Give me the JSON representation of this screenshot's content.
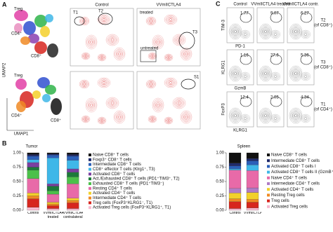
{
  "panel_a": {
    "label": "A",
    "columns": [
      "Control",
      "VVmIICTLA4"
    ],
    "axis_x": "UMAP1",
    "axis_y": "UMAP2",
    "umap_top": [
      "Treg",
      "CD4⁺",
      "CD8⁺"
    ],
    "umap_bottom": [
      "Treg",
      "CD4⁺",
      "CD8⁺"
    ],
    "gates": [
      "T1",
      "T2",
      "treated",
      "T3",
      "untreated",
      "S1"
    ]
  },
  "panel_c": {
    "label": "C",
    "columns": [
      "Control",
      "VVmIICTLA4 treated",
      "VVmIICTLA4 contr."
    ],
    "rows": [
      {
        "y_axis": "TIM-3",
        "x_axis": "PD-1",
        "gate": "T2",
        "gate_of": "(of CD8⁺)",
        "values": [
          "1.77",
          "9.07",
          "6.27"
        ]
      },
      {
        "y_axis": "KLRG1",
        "x_axis": "GzmB",
        "gate": "T3",
        "gate_of": "(of CD8⁺)",
        "values": [
          "1.16",
          "27.6",
          "5.36"
        ]
      },
      {
        "y_axis": "FoxP3",
        "x_axis": "KLRG1",
        "gate": "T1",
        "gate_of": "(of CD4⁺)",
        "values": [
          "12.4",
          "2.05",
          "4.34"
        ]
      }
    ]
  },
  "panel_b": {
    "label": "B"
  },
  "chart_data": [
    {
      "type": "bar",
      "stacked": true,
      "title": "Tumor",
      "categories": [
        "Control",
        "VVmIICTLA4 treated",
        "VVmIICTLA4 contralateral"
      ],
      "ylim": [
        0,
        1
      ],
      "yticks": [
        {
          "value": 0,
          "label": "0.00"
        },
        {
          "value": 0.25,
          "label": "0.25"
        },
        {
          "value": 0.5,
          "label": "0.50"
        },
        {
          "value": 0.75,
          "label": "0.75"
        },
        {
          "value": 1,
          "label": "1.00"
        }
      ],
      "series": [
        {
          "name": "Naive CD8⁺ T cells",
          "color": "#111111",
          "values": [
            0.03,
            0.02,
            0.03
          ]
        },
        {
          "name": "Foxp3⁺ CD8⁺ T cells",
          "color": "#1f2a6b",
          "values": [
            0.03,
            0.02,
            0.03
          ]
        },
        {
          "name": "Intermediate CD8⁺ T cells",
          "color": "#2b5fb8",
          "values": [
            0.06,
            0.05,
            0.07
          ]
        },
        {
          "name": "CD8⁺ effector T cells (Klrg1⁺, T3)",
          "color": "#3fb7e8",
          "values": [
            0.05,
            0.45,
            0.15
          ]
        },
        {
          "name": "Activated CD8⁺ T cells",
          "color": "#7b3fa0",
          "values": [
            0.08,
            0.04,
            0.06
          ]
        },
        {
          "name": "Act./Exhausted CD8⁺ T cells (PD1⁺TIM3⁺, T2)",
          "color": "#1d7a3a",
          "values": [
            0.05,
            0.08,
            0.08
          ]
        },
        {
          "name": "Exhausted CD8⁺ T cells (PD1⁺TIM3⁻)",
          "color": "#4cc04a",
          "values": [
            0.15,
            0.06,
            0.12
          ]
        },
        {
          "name": "Resting CD4⁺ T cells",
          "color": "#e86aa8",
          "values": [
            0.25,
            0.14,
            0.25
          ]
        },
        {
          "name": "Activated CD4⁺ T cells",
          "color": "#f2d12a",
          "values": [
            0.05,
            0.03,
            0.04
          ]
        },
        {
          "name": "Intermediate CD4⁺ T cells",
          "color": "#f08a24",
          "values": [
            0.05,
            0.03,
            0.04
          ]
        },
        {
          "name": "Treg cells (FoxP3⁺KLRG1⁻, T1)",
          "color": "#d7261e",
          "values": [
            0.15,
            0.05,
            0.1
          ]
        },
        {
          "name": "Activated Treg cells (FoxP3⁺KLRG1⁺, T1)",
          "color": "#f7b9cf",
          "values": [
            0.05,
            0.03,
            0.03
          ]
        }
      ]
    },
    {
      "type": "bar",
      "stacked": true,
      "title": "Spleen",
      "categories": [
        "Control",
        "VVmIICTLA4"
      ],
      "ylim": [
        0,
        1
      ],
      "yticks": [
        {
          "value": 0,
          "label": "0.00"
        },
        {
          "value": 0.25,
          "label": "0.25"
        },
        {
          "value": 0.5,
          "label": "0.50"
        },
        {
          "value": 0.75,
          "label": "0.75"
        },
        {
          "value": 1,
          "label": "1.00"
        }
      ],
      "series": [
        {
          "name": "Naive CD8⁺ T cells",
          "color": "#111111",
          "values": [
            0.18,
            0.1
          ]
        },
        {
          "name": "Intermediate CD8⁺ T cells",
          "color": "#1f2a6b",
          "values": [
            0.05,
            0.04
          ]
        },
        {
          "name": "Activated CD8⁺ T cells I",
          "color": "#2b5fb8",
          "values": [
            0.05,
            0.07
          ]
        },
        {
          "name": "Activated CD8⁺ T cells II (GzmB⁺KLRG1⁺, S1)",
          "color": "#3fb7e8",
          "values": [
            0.02,
            0.1
          ]
        },
        {
          "name": "Naive CD4⁺ T cells",
          "color": "#e86aa8",
          "values": [
            0.32,
            0.3
          ]
        },
        {
          "name": "Intermediate CD4⁺ T cells",
          "color": "#b07cc6",
          "values": [
            0.08,
            0.08
          ]
        },
        {
          "name": "Activated CD4⁺ T cells",
          "color": "#f2d12a",
          "values": [
            0.1,
            0.12
          ]
        },
        {
          "name": "Resting Treg cells",
          "color": "#f08a24",
          "values": [
            0.05,
            0.05
          ]
        },
        {
          "name": "Treg cells",
          "color": "#d7261e",
          "values": [
            0.12,
            0.1
          ]
        },
        {
          "name": "Activated Treg cells",
          "color": "#f7b9cf",
          "values": [
            0.03,
            0.04
          ]
        }
      ]
    }
  ]
}
